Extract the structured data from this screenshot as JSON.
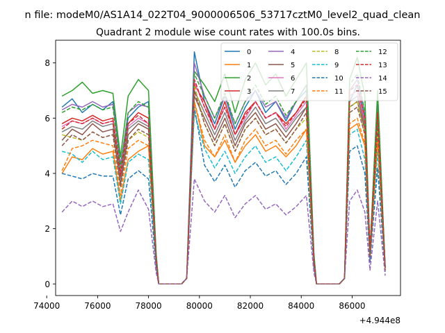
{
  "chart_data": {
    "type": "line",
    "suptitle": "n file: modeM0/AS1A14_022T04_9000006506_53717cztM0_level2_quad_clean",
    "title": "Quadrant 2 module wise count rates with 100.0s bins.",
    "xlabel": "",
    "ylabel": "",
    "x_offset_label": "+4.944e8",
    "xlim": [
      74350,
      87900
    ],
    "ylim": [
      -0.42,
      8.82
    ],
    "x_ticks": [
      {
        "value": 74000,
        "label": "74000"
      },
      {
        "value": 76000,
        "label": "76000"
      },
      {
        "value": 78000,
        "label": "78000"
      },
      {
        "value": 80000,
        "label": "80000"
      },
      {
        "value": 82000,
        "label": "82000"
      },
      {
        "value": 84000,
        "label": "84000"
      },
      {
        "value": 86000,
        "label": "86000"
      }
    ],
    "y_ticks": [
      {
        "value": 0,
        "label": "0"
      },
      {
        "value": 2,
        "label": "2"
      },
      {
        "value": 4,
        "label": "4"
      },
      {
        "value": 6,
        "label": "6"
      },
      {
        "value": 8,
        "label": "8"
      }
    ],
    "grid": false,
    "legend_position": "upper-right",
    "legend_columns": 4,
    "x": [
      74600,
      75000,
      75400,
      75800,
      76200,
      76600,
      76900,
      77200,
      77600,
      78000,
      78300,
      78400,
      79300,
      79500,
      79800,
      80200,
      80600,
      81000,
      81400,
      81800,
      82200,
      82600,
      83000,
      83400,
      83800,
      84200,
      84500,
      84600,
      85500,
      85700,
      85900,
      86200,
      86500,
      86700,
      87000,
      87300
    ],
    "series": [
      {
        "name": "0",
        "color": "#1f77b4",
        "dash": "solid",
        "values": [
          6.4,
          6.7,
          6.2,
          6.5,
          6.3,
          6.6,
          4.3,
          6.0,
          6.4,
          6.6,
          1.0,
          0,
          0,
          0.2,
          8.4,
          6.6,
          5.8,
          6.8,
          5.6,
          6.4,
          7.0,
          6.2,
          6.6,
          5.9,
          6.6,
          7.0,
          1.0,
          0,
          0,
          0.2,
          6.6,
          7.2,
          6.0,
          1.0,
          6.5,
          0.6
        ]
      },
      {
        "name": "1",
        "color": "#ff7f0e",
        "dash": "solid",
        "values": [
          4.0,
          4.6,
          4.5,
          4.9,
          4.7,
          4.8,
          3.0,
          4.5,
          4.8,
          5.0,
          0.8,
          0,
          0,
          0.2,
          6.6,
          5.0,
          4.6,
          5.2,
          4.4,
          5.0,
          5.4,
          4.8,
          5.0,
          4.6,
          5.0,
          5.6,
          0.8,
          0,
          0,
          0.2,
          5.6,
          5.8,
          5.0,
          0.8,
          5.2,
          0.5
        ]
      },
      {
        "name": "2",
        "color": "#2ca02c",
        "dash": "solid",
        "values": [
          6.8,
          7.0,
          7.3,
          6.9,
          7.0,
          6.9,
          4.6,
          6.8,
          7.4,
          7.0,
          1.1,
          0,
          0,
          0.2,
          7.7,
          7.2,
          6.6,
          7.6,
          6.2,
          7.4,
          8.0,
          7.2,
          7.6,
          6.8,
          7.4,
          8.0,
          1.1,
          0,
          0,
          0.2,
          7.4,
          8.2,
          6.8,
          1.2,
          7.0,
          0.6
        ]
      },
      {
        "name": "3",
        "color": "#d62728",
        "dash": "solid",
        "values": [
          5.8,
          6.0,
          5.9,
          6.1,
          5.9,
          6.0,
          4.0,
          5.8,
          6.2,
          6.0,
          0.9,
          0,
          0,
          0.2,
          7.2,
          6.6,
          5.6,
          6.6,
          5.4,
          6.2,
          6.6,
          6.0,
          6.2,
          5.8,
          6.2,
          6.8,
          0.9,
          0,
          0,
          0.2,
          6.8,
          7.0,
          5.8,
          1.3,
          6.0,
          0.6
        ]
      },
      {
        "name": "4",
        "color": "#9467bd",
        "dash": "solid",
        "values": [
          6.3,
          6.5,
          6.4,
          6.6,
          6.4,
          6.5,
          4.3,
          6.2,
          6.5,
          6.4,
          1.0,
          0,
          0,
          0.2,
          8.0,
          6.8,
          6.0,
          6.8,
          5.8,
          6.6,
          7.0,
          6.4,
          6.6,
          6.0,
          6.6,
          7.2,
          1.0,
          0,
          0,
          0.2,
          7.0,
          7.4,
          6.2,
          1.0,
          6.4,
          0.6
        ]
      },
      {
        "name": "5",
        "color": "#8c564b",
        "dash": "solid",
        "values": [
          5.2,
          5.6,
          5.4,
          5.8,
          5.5,
          5.6,
          3.6,
          5.4,
          5.8,
          5.6,
          0.8,
          0,
          0,
          0.2,
          6.8,
          6.0,
          5.2,
          6.0,
          5.0,
          5.8,
          6.2,
          5.6,
          5.8,
          5.3,
          5.8,
          6.4,
          0.8,
          0,
          0,
          0.2,
          6.4,
          6.6,
          5.6,
          1.1,
          5.8,
          0.5
        ]
      },
      {
        "name": "6",
        "color": "#e377c2",
        "dash": "solid",
        "values": [
          5.7,
          5.9,
          5.8,
          6.0,
          5.8,
          5.9,
          3.9,
          5.7,
          6.0,
          5.8,
          0.9,
          0,
          0,
          0.2,
          7.3,
          6.4,
          5.6,
          6.4,
          5.4,
          6.0,
          6.6,
          6.0,
          6.2,
          5.6,
          6.1,
          6.6,
          0.9,
          0,
          0,
          0.2,
          6.8,
          7.0,
          5.9,
          1.2,
          6.1,
          0.6
        ]
      },
      {
        "name": "7",
        "color": "#7f7f7f",
        "dash": "solid",
        "values": [
          5.5,
          5.7,
          5.6,
          5.9,
          5.7,
          5.8,
          3.8,
          5.6,
          5.9,
          5.7,
          0.9,
          0,
          0,
          0.2,
          7.0,
          6.2,
          5.4,
          6.2,
          5.2,
          5.9,
          6.4,
          5.8,
          6.0,
          5.5,
          6.0,
          6.4,
          0.9,
          0,
          0,
          0.2,
          6.6,
          6.8,
          5.7,
          1.1,
          5.9,
          0.5
        ]
      },
      {
        "name": "8",
        "color": "#bcbd22",
        "dash": "dashed",
        "values": [
          5.4,
          5.3,
          5.2,
          5.5,
          5.3,
          5.4,
          3.5,
          5.2,
          5.5,
          5.3,
          0.8,
          0,
          0,
          0.2,
          7.2,
          5.8,
          5.0,
          5.8,
          4.8,
          5.6,
          6.0,
          5.4,
          5.6,
          5.1,
          5.6,
          6.0,
          0.8,
          0,
          0,
          0.2,
          6.4,
          6.6,
          5.4,
          1.0,
          5.6,
          0.5
        ]
      },
      {
        "name": "9",
        "color": "#17becf",
        "dash": "dashed",
        "values": [
          4.8,
          4.7,
          4.4,
          4.8,
          4.5,
          4.6,
          2.9,
          4.4,
          4.7,
          4.5,
          0.7,
          0,
          0,
          0.2,
          6.2,
          4.9,
          4.2,
          4.8,
          4.0,
          4.6,
          5.0,
          4.4,
          4.6,
          4.1,
          4.6,
          5.2,
          0.7,
          0,
          0,
          0.2,
          5.4,
          5.6,
          4.5,
          0.9,
          4.8,
          0.4
        ]
      },
      {
        "name": "10",
        "color": "#1f77b4",
        "dash": "dashed",
        "values": [
          4.0,
          3.9,
          3.8,
          4.0,
          3.9,
          3.9,
          2.5,
          3.8,
          4.1,
          3.8,
          0.6,
          0,
          0,
          0.2,
          6.4,
          4.3,
          3.7,
          4.3,
          3.5,
          4.1,
          4.4,
          3.9,
          4.1,
          3.6,
          4.0,
          4.6,
          0.6,
          0,
          0,
          0.2,
          4.8,
          5.0,
          4.0,
          0.8,
          4.2,
          0.4
        ]
      },
      {
        "name": "11",
        "color": "#ff7f0e",
        "dash": "dashed",
        "values": [
          4.1,
          4.9,
          5.0,
          5.2,
          5.1,
          5.0,
          3.2,
          4.9,
          5.2,
          5.0,
          0.8,
          0,
          0,
          0.2,
          6.6,
          5.2,
          4.6,
          5.4,
          4.4,
          5.2,
          5.6,
          5.0,
          5.2,
          4.7,
          5.2,
          5.6,
          0.8,
          0,
          0,
          0.2,
          5.8,
          6.0,
          5.1,
          1.0,
          5.2,
          0.5
        ]
      },
      {
        "name": "12",
        "color": "#2ca02c",
        "dash": "dashed",
        "values": [
          6.2,
          6.4,
          6.3,
          6.5,
          6.3,
          6.4,
          4.2,
          6.2,
          6.6,
          6.4,
          1.0,
          0,
          0,
          0.2,
          7.6,
          6.8,
          6.0,
          6.9,
          5.8,
          6.6,
          7.2,
          6.5,
          6.8,
          6.1,
          6.6,
          7.2,
          1.0,
          0,
          0,
          0.2,
          7.2,
          7.6,
          6.2,
          1.1,
          6.4,
          0.6
        ]
      },
      {
        "name": "13",
        "color": "#d62728",
        "dash": "dashed",
        "values": [
          5.6,
          5.9,
          5.8,
          6.0,
          5.8,
          5.9,
          3.9,
          5.8,
          6.1,
          5.8,
          0.9,
          0,
          0,
          0.2,
          7.4,
          6.4,
          5.6,
          6.4,
          5.4,
          6.1,
          6.6,
          6.0,
          6.2,
          5.7,
          6.2,
          6.7,
          0.9,
          0,
          0,
          0.2,
          7.0,
          7.2,
          6.0,
          1.2,
          6.2,
          0.6
        ]
      },
      {
        "name": "14",
        "color": "#9467bd",
        "dash": "dashed",
        "values": [
          2.6,
          3.0,
          2.8,
          3.0,
          2.8,
          2.9,
          1.9,
          2.6,
          3.4,
          2.7,
          0.4,
          0,
          0,
          0.2,
          3.8,
          3.0,
          2.6,
          3.2,
          2.4,
          2.9,
          3.2,
          2.7,
          2.9,
          2.5,
          2.8,
          3.2,
          0.4,
          0,
          0,
          0.2,
          3.0,
          3.4,
          2.6,
          0.5,
          3.0,
          0.3
        ]
      },
      {
        "name": "15",
        "color": "#8c564b",
        "dash": "dashed",
        "values": [
          5.0,
          5.4,
          5.2,
          5.5,
          5.3,
          5.4,
          3.5,
          5.2,
          5.6,
          5.4,
          0.8,
          0,
          0,
          0.2,
          7.0,
          5.8,
          5.0,
          5.8,
          4.8,
          5.6,
          6.0,
          5.4,
          5.6,
          5.1,
          5.6,
          6.2,
          0.8,
          0,
          0,
          0.2,
          6.2,
          6.4,
          5.4,
          1.0,
          5.6,
          0.5
        ]
      }
    ]
  }
}
